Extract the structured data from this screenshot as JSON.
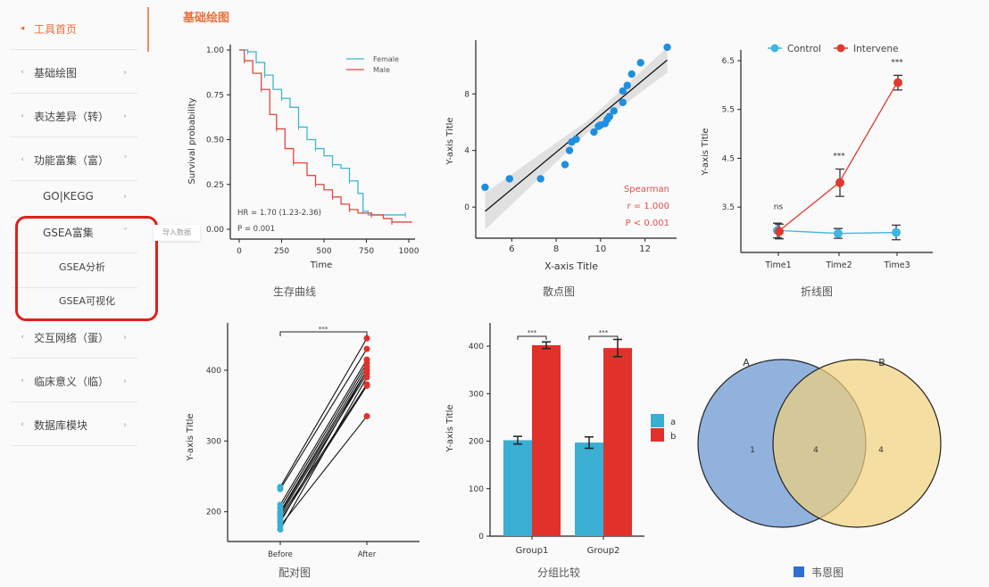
{
  "sidebar": {
    "items": [
      {
        "label": "工具首页",
        "active": true
      },
      {
        "label": "基础绘图"
      },
      {
        "label": "表达差异（转）"
      },
      {
        "label": "功能富集（富）",
        "expanded": true
      },
      {
        "label": "GO|KEGG"
      },
      {
        "label": "GSEA富集",
        "expanded": true
      },
      {
        "label": "GSEA分析"
      },
      {
        "label": "GSEA可视化"
      },
      {
        "label": "交互网络（蛋）"
      },
      {
        "label": "临床意义（临）"
      },
      {
        "label": "数据库模块"
      }
    ],
    "tooltip": "导入数据"
  },
  "main": {
    "title": "基础绘图",
    "captions": [
      "生存曲线",
      "散点图",
      "折线图",
      "配对图",
      "分组比较",
      "韦恩图"
    ]
  },
  "colors": {
    "accent": "#e8703a",
    "blue": "#29a3d6",
    "red": "#e03a2e",
    "highlight": "#e0201b"
  },
  "chart_data": [
    {
      "type": "line",
      "name": "survival",
      "xlabel": "Time",
      "ylabel": "Survival probability",
      "xlim": [
        0,
        1000
      ],
      "ylim": [
        0,
        1
      ],
      "xticks": [
        0,
        250,
        500,
        750,
        1000
      ],
      "yticks": [
        "0.00",
        "0.25",
        "0.50",
        "0.75",
        "1.00"
      ],
      "legend": "top-right",
      "series": [
        {
          "name": "Female",
          "color": "#3fb6cf",
          "points": [
            [
              0,
              1
            ],
            [
              50,
              0.99
            ],
            [
              100,
              0.93
            ],
            [
              150,
              0.86
            ],
            [
              200,
              0.78
            ],
            [
              250,
              0.73
            ],
            [
              300,
              0.68
            ],
            [
              350,
              0.57
            ],
            [
              400,
              0.5
            ],
            [
              450,
              0.45
            ],
            [
              500,
              0.41
            ],
            [
              550,
              0.36
            ],
            [
              600,
              0.34
            ],
            [
              650,
              0.27
            ],
            [
              700,
              0.2
            ],
            [
              730,
              0.1
            ],
            [
              760,
              0.08
            ],
            [
              980,
              0.08
            ]
          ]
        },
        {
          "name": "Male",
          "color": "#e2483c",
          "points": [
            [
              0,
              1
            ],
            [
              30,
              0.94
            ],
            [
              80,
              0.87
            ],
            [
              130,
              0.78
            ],
            [
              180,
              0.64
            ],
            [
              220,
              0.56
            ],
            [
              270,
              0.45
            ],
            [
              320,
              0.37
            ],
            [
              400,
              0.3
            ],
            [
              450,
              0.25
            ],
            [
              500,
              0.22
            ],
            [
              550,
              0.18
            ],
            [
              600,
              0.14
            ],
            [
              650,
              0.11
            ],
            [
              700,
              0.09
            ],
            [
              780,
              0.08
            ],
            [
              850,
              0.06
            ],
            [
              900,
              0.04
            ],
            [
              1020,
              0.04
            ]
          ]
        }
      ],
      "annotations": [
        "HR = 1.70 (1.23-2.36)",
        "P = 0.001"
      ]
    },
    {
      "type": "scatter",
      "name": "scatter",
      "xlabel": "X-axis Title",
      "ylabel": "Y-axis Title",
      "xlim": [
        4.5,
        13.3
      ],
      "ylim": [
        -2.2,
        11.8
      ],
      "xticks": [
        6,
        8,
        10,
        12
      ],
      "yticks": [
        0,
        4,
        8
      ],
      "color": "#1e8fe0",
      "points": [
        [
          4.8,
          1.4
        ],
        [
          5.9,
          2.0
        ],
        [
          7.3,
          2.0
        ],
        [
          8.4,
          3.0
        ],
        [
          8.6,
          4.0
        ],
        [
          8.7,
          4.6
        ],
        [
          8.9,
          4.8
        ],
        [
          9.7,
          5.3
        ],
        [
          9.9,
          5.7
        ],
        [
          10.0,
          5.8
        ],
        [
          10.2,
          5.9
        ],
        [
          10.3,
          6.2
        ],
        [
          10.4,
          6.4
        ],
        [
          10.6,
          6.8
        ],
        [
          11.0,
          7.4
        ],
        [
          11.0,
          8.2
        ],
        [
          11.2,
          8.6
        ],
        [
          11.4,
          9.4
        ],
        [
          11.8,
          10.2
        ],
        [
          13.0,
          11.3
        ]
      ],
      "fit": [
        [
          4.8,
          -0.3
        ],
        [
          13.0,
          10.4
        ]
      ],
      "annotations": [
        "Spearman",
        "r = 1.000",
        "P < 0.001"
      ]
    },
    {
      "type": "line",
      "name": "line",
      "xlabel": "",
      "ylabel": "Y-axis Title",
      "categories": [
        "Time1",
        "Time2",
        "Time3"
      ],
      "ylim": [
        2.57,
        6.72
      ],
      "yticks": [
        "3.5",
        "4.5",
        "5.5",
        "6.5"
      ],
      "legend": "top",
      "series": [
        {
          "name": "Control",
          "color": "#3fb6e0",
          "values": [
            3.02,
            2.96,
            2.98
          ],
          "errors": [
            0.15,
            0.1,
            0.15
          ]
        },
        {
          "name": "Intervene",
          "color": "#e03a2e",
          "values": [
            3.0,
            4.0,
            6.05
          ],
          "errors": [
            0.15,
            0.28,
            0.15
          ]
        }
      ],
      "significance": [
        "ns",
        "***",
        "***"
      ]
    },
    {
      "type": "line",
      "name": "paired",
      "xlabel": "",
      "ylabel": "Y-axis Title",
      "categories": [
        "Before",
        "After"
      ],
      "ylim": [
        158,
        463
      ],
      "yticks": [
        200,
        300,
        400
      ],
      "pairs": [
        [
          235,
          445
        ],
        [
          232,
          430
        ],
        [
          210,
          415
        ],
        [
          205,
          410
        ],
        [
          200,
          405
        ],
        [
          198,
          400
        ],
        [
          195,
          395
        ],
        [
          192,
          380
        ],
        [
          188,
          378
        ],
        [
          185,
          400
        ],
        [
          180,
          335
        ],
        [
          175,
          390
        ]
      ],
      "significance": "***"
    },
    {
      "type": "bar",
      "name": "grouped-bar",
      "xlabel": "",
      "ylabel": "Y-axis Title",
      "categories": [
        "Group1",
        "Group2"
      ],
      "ylim": [
        0,
        450
      ],
      "yticks": [
        0,
        100,
        200,
        300,
        400
      ],
      "legend": "right",
      "series": [
        {
          "name": "a",
          "color": "#3aaed3",
          "values": [
            202,
            197
          ],
          "errors": [
            8,
            12
          ]
        },
        {
          "name": "b",
          "color": "#e0322a",
          "values": [
            402,
            396
          ],
          "errors": [
            7,
            18
          ]
        }
      ],
      "significance": [
        "***",
        "***"
      ]
    },
    {
      "type": "venn",
      "name": "venn",
      "sets": [
        {
          "name": "A",
          "color": "#7fa4d8",
          "only": "1"
        },
        {
          "name": "B",
          "color": "#f2d27a",
          "only": "4"
        }
      ],
      "intersection": "4"
    }
  ]
}
